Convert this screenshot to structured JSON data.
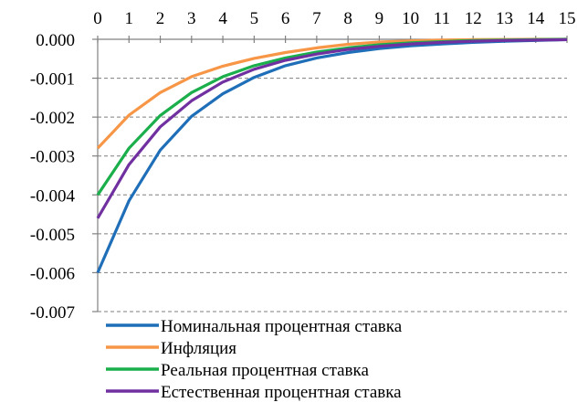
{
  "chart_data": {
    "type": "line",
    "x": [
      0,
      1,
      2,
      3,
      4,
      5,
      6,
      7,
      8,
      9,
      10,
      11,
      12,
      13,
      14,
      15
    ],
    "x_tick_labels": [
      "0",
      "1",
      "2",
      "3",
      "4",
      "5",
      "6",
      "7",
      "8",
      "9",
      "10",
      "11",
      "12",
      "13",
      "14",
      "15"
    ],
    "y_tick_labels": [
      "0.000",
      "-0.001",
      "-0.002",
      "-0.003",
      "-0.004",
      "-0.005",
      "-0.006",
      "-0.007"
    ],
    "y_ticks": [
      0,
      -0.001,
      -0.002,
      -0.003,
      -0.004,
      -0.005,
      -0.006,
      -0.007
    ],
    "ylim": [
      -0.007,
      0.0
    ],
    "xlim": [
      0,
      15
    ],
    "x_axis_position": "top",
    "grid": "horizontal-dashed",
    "legend_position": "bottom",
    "series": [
      {
        "name": "Номинальная процентная ставка",
        "color": "#1F6EB8",
        "values": [
          -0.006,
          -0.00415,
          -0.00285,
          -0.00198,
          -0.0014,
          -0.00098,
          -0.00068,
          -0.00048,
          -0.00034,
          -0.00024,
          -0.00017,
          -0.00012,
          -8e-05,
          -5e-05,
          -3e-05,
          -1e-05
        ]
      },
      {
        "name": "Инфляция",
        "color": "#F79646",
        "values": [
          -0.0028,
          -0.00195,
          -0.00137,
          -0.00096,
          -0.00069,
          -0.00049,
          -0.00034,
          -0.00022,
          -0.00013,
          -7e-05,
          -4e-05,
          -2e-05,
          -1e-05,
          -5e-06,
          0.0,
          0.0
        ]
      },
      {
        "name": "Реальная процентная ставка",
        "color": "#1AAF4B",
        "values": [
          -0.004,
          -0.0028,
          -0.00196,
          -0.00137,
          -0.00096,
          -0.00068,
          -0.00048,
          -0.00033,
          -0.00022,
          -0.00014,
          -9e-05,
          -6e-05,
          -3e-05,
          -2e-05,
          -1e-05,
          0.0
        ]
      },
      {
        "name": "Естественная процентная ставка",
        "color": "#7030A0",
        "values": [
          -0.0046,
          -0.00322,
          -0.00225,
          -0.00158,
          -0.0011,
          -0.00077,
          -0.00054,
          -0.00038,
          -0.00026,
          -0.00018,
          -0.00012,
          -8e-05,
          -5e-05,
          -3e-05,
          -2e-05,
          -1e-05
        ]
      }
    ]
  }
}
